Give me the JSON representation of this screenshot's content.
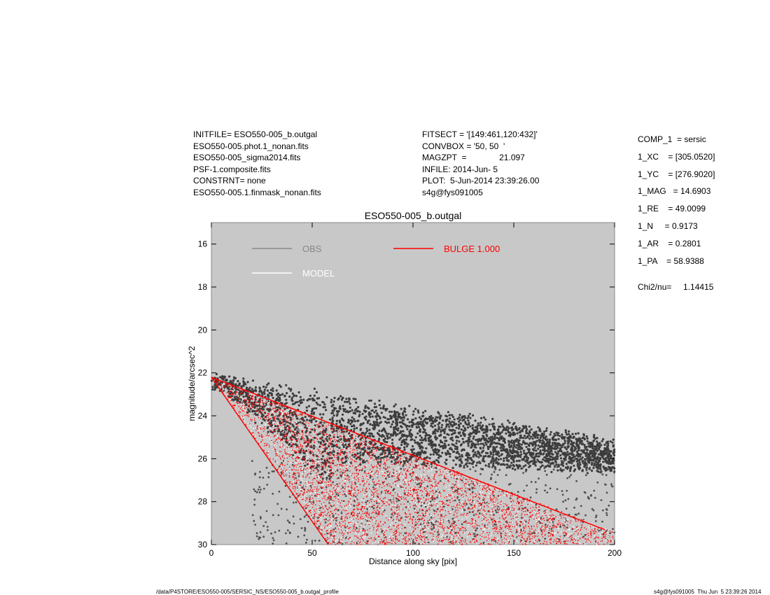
{
  "header": {
    "left": [
      "INITFILE= ESO550-005_b.outgal",
      "ESO550-005.phot.1_nonan.fits",
      "ESO550-005_sigma2014.fits",
      "PSF-1.composite.fits",
      "CONSTRNT= none",
      "ESO550-005.1.finmask_nonan.fits"
    ],
    "middle": [
      "FITSECT = '[149:461,120:432]'",
      "CONVBOX = '50, 50  '",
      "MAGZPT  =              21.097",
      "INFILE: 2014-Jun- 5",
      "PLOT:  5-Jun-2014 23:39:26.00",
      "s4g@fys091005"
    ],
    "right": [
      "COMP_1  = sersic",
      "1_XC    = [305.0520]",
      "1_YC    = [276.9020]",
      "1_MAG   = 14.6903",
      "1_RE    = 49.0099",
      "1_N     = 0.9173",
      "1_AR    = 0.2801",
      "1_PA    = 58.9388"
    ],
    "chi2": "Chi2/nu=     1.14415"
  },
  "footer": {
    "left": "/data/P4STORE/ESO550-005/SERSIC_NS/ESO550-005_b.outgal_profile",
    "right": "s4g@fys091005  Thu Jun  5 23:39:26 2014"
  },
  "chart_data": {
    "type": "scatter",
    "title": "ESO550-005_b.outgal",
    "xlabel": "Distance along sky [pix]",
    "ylabel": "magnitude/arcsec^2",
    "xlim": [
      0,
      200
    ],
    "ylim": [
      15,
      30
    ],
    "y_inverted": true,
    "xticks": [
      "0",
      "50",
      "100",
      "150",
      "200"
    ],
    "yticks": [
      "16",
      "18",
      "20",
      "22",
      "24",
      "26",
      "28",
      "30"
    ],
    "legend_placement": "top",
    "background": "#c8c8c8",
    "series": [
      {
        "name": "OBS",
        "color": "#888888",
        "points": [
          [
            0,
            22.2
          ],
          [
            10,
            22.9
          ],
          [
            25,
            23.6
          ],
          [
            50,
            24.3
          ],
          [
            100,
            24.9
          ],
          [
            150,
            25.2
          ],
          [
            200,
            25.6
          ],
          [
            30,
            26.5
          ],
          [
            45,
            28.5
          ],
          [
            190,
            28.8
          ],
          [
            120,
            24.0
          ],
          [
            90,
            23.3
          ]
        ]
      },
      {
        "name": "MODEL",
        "color": "#ffffff",
        "points": [
          [
            0,
            22.2
          ],
          [
            50,
            24.0
          ],
          [
            100,
            25.8
          ],
          [
            150,
            27.6
          ],
          [
            195,
            29.3
          ],
          [
            58,
            30.0
          ]
        ]
      },
      {
        "name": "BULGE  1.000",
        "color": "#ff0000",
        "points": [
          [
            0,
            22.2
          ],
          [
            50,
            24.0
          ],
          [
            100,
            25.8
          ],
          [
            150,
            27.6
          ],
          [
            195,
            29.3
          ],
          [
            58,
            30.0
          ]
        ]
      }
    ]
  }
}
